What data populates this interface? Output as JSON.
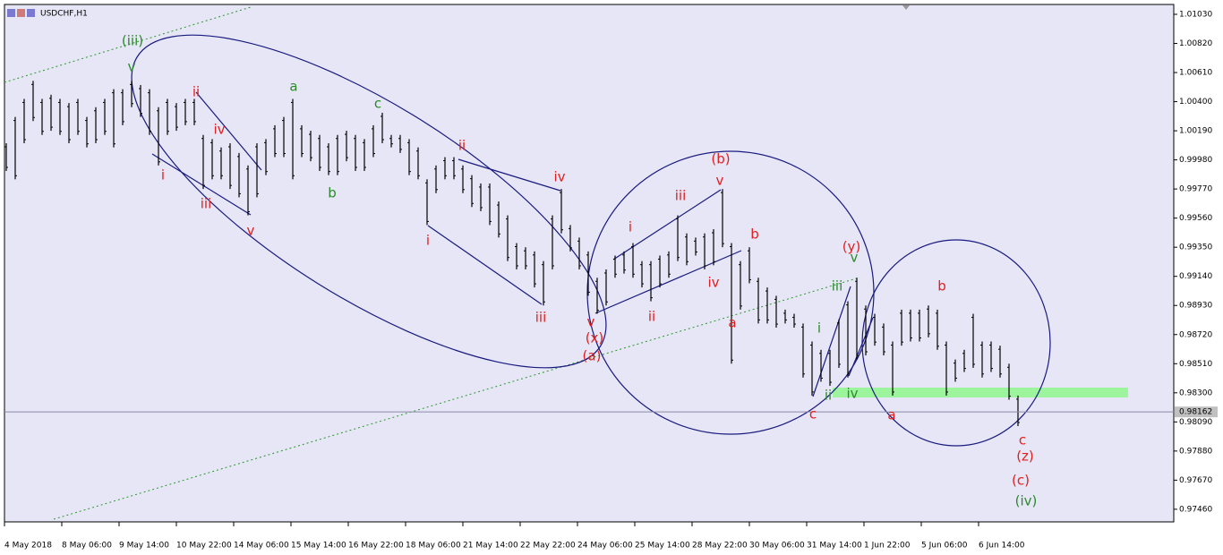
{
  "chart_data": {
    "type": "range",
    "title": "USDCHF,H1",
    "color": "#000000",
    "x": [
      1,
      6,
      11,
      16,
      21,
      26,
      31,
      36,
      41,
      46,
      51,
      56,
      61,
      66,
      71,
      76,
      81,
      86,
      91,
      96,
      101,
      106,
      111,
      116,
      121,
      126,
      131,
      136,
      141,
      146,
      151,
      156,
      161,
      166,
      171,
      176,
      181,
      186,
      191,
      196,
      201,
      206,
      211,
      216,
      221,
      226,
      231,
      236,
      241,
      246,
      251,
      256,
      261,
      266,
      271,
      276,
      281,
      286,
      291,
      296,
      301,
      306,
      311,
      316,
      321,
      326,
      331,
      336,
      341,
      346,
      351,
      356,
      361,
      366,
      371,
      376,
      381,
      386,
      391,
      396,
      401,
      406,
      411,
      416,
      421,
      426,
      431,
      436,
      441,
      446,
      451,
      456,
      461,
      466,
      471,
      476,
      481,
      486,
      491,
      496,
      501,
      506,
      511,
      516,
      521,
      526,
      531,
      536,
      541,
      546,
      551,
      556,
      561,
      566
    ],
    "high": [
      1.001,
      1.0029,
      1.0042,
      1.0055,
      1.0042,
      1.0045,
      1.0042,
      1.0039,
      1.0042,
      1.0029,
      1.0036,
      1.0042,
      1.0049,
      1.0049,
      1.0055,
      1.0052,
      1.0049,
      1.0036,
      1.0042,
      1.0039,
      1.0042,
      1.0042,
      1.0016,
      1.0013,
      1.0007,
      1.001,
      1.0003,
      0.9994,
      1.001,
      1.0013,
      1.0023,
      1.0029,
      1.0042,
      1.0023,
      1.0019,
      1.0016,
      1.001,
      1.0016,
      1.0019,
      1.0016,
      1.0013,
      1.0023,
      1.0032,
      1.0016,
      1.0016,
      1.0013,
      1.0007,
      0.9984,
      0.9994,
      1.0,
      1.0,
      0.9994,
      0.9987,
      0.9981,
      0.9981,
      0.9968,
      0.9958,
      0.9938,
      0.9935,
      0.9932,
      0.9925,
      0.9958,
      0.9977,
      0.9951,
      0.9942,
      0.9932,
      0.9913,
      0.9919,
      0.9929,
      0.9932,
      0.9938,
      0.9925,
      0.9925,
      0.9929,
      0.9932,
      0.9958,
      0.9945,
      0.9942,
      0.9945,
      0.9948,
      0.9977,
      0.9938,
      0.9925,
      0.9935,
      0.9913,
      0.9906,
      0.99,
      0.989,
      0.9887,
      0.988,
      0.9867,
      0.9861,
      0.9861,
      0.9883,
      0.9896,
      0.9913,
      0.9893,
      0.9887,
      0.988,
      0.9867,
      0.989,
      0.989,
      0.989,
      0.9893,
      0.989,
      0.9867,
      0.9854,
      0.9861,
      0.9887,
      0.9867,
      0.9867,
      0.9864,
      0.9851,
      0.9828
    ],
    "low": [
      0.999,
      0.9984,
      1.001,
      1.0026,
      1.0016,
      1.0019,
      1.0016,
      1.001,
      1.0016,
      1.0007,
      1.001,
      1.0016,
      1.0007,
      1.0023,
      1.0036,
      1.0029,
      1.0016,
      0.9994,
      1.0016,
      1.0019,
      1.0023,
      1.0023,
      0.9977,
      0.9984,
      0.9984,
      0.9977,
      0.9971,
      0.9958,
      0.9971,
      0.9987,
      1.0,
      1.0,
      0.9984,
      1.0,
      0.9997,
      0.999,
      0.9987,
      0.9987,
      0.9997,
      0.999,
      0.999,
      1.0,
      1.001,
      1.0007,
      1.0003,
      0.9987,
      0.9984,
      0.9951,
      0.9974,
      0.9984,
      0.9984,
      0.9974,
      0.9964,
      0.9961,
      0.9951,
      0.9942,
      0.9925,
      0.9919,
      0.9919,
      0.9906,
      0.9893,
      0.9919,
      0.9945,
      0.9932,
      0.9919,
      0.99,
      0.9887,
      0.9893,
      0.9913,
      0.9916,
      0.9913,
      0.9906,
      0.9896,
      0.9906,
      0.9913,
      0.9925,
      0.9922,
      0.9929,
      0.9919,
      0.9922,
      0.9935,
      0.9851,
      0.989,
      0.9909,
      0.988,
      0.988,
      0.9877,
      0.988,
      0.9877,
      0.9841,
      0.9828,
      0.9838,
      0.9835,
      0.9848,
      0.9841,
      0.9854,
      0.9857,
      0.9864,
      0.9857,
      0.9828,
      0.9864,
      0.9867,
      0.9867,
      0.987,
      0.9861,
      0.9828,
      0.9838,
      0.9845,
      0.9848,
      0.9841,
      0.9845,
      0.9841,
      0.9825,
      0.9806
    ],
    "xlim": [
      0,
      652
    ],
    "ylim": [
      0.97369,
      1.01101
    ],
    "yticks": [
      {
        "value": 1.0103,
        "label": "1.01030"
      },
      {
        "value": 1.0082,
        "label": "1.00820"
      },
      {
        "value": 1.0061,
        "label": "1.00610"
      },
      {
        "value": 1.004,
        "label": "1.00400"
      },
      {
        "value": 1.0019,
        "label": "1.00190"
      },
      {
        "value": 0.9998,
        "label": "0.99980"
      },
      {
        "value": 0.9977,
        "label": "0.99770"
      },
      {
        "value": 0.9956,
        "label": "0.99560"
      },
      {
        "value": 0.9935,
        "label": "0.99350"
      },
      {
        "value": 0.9914,
        "label": "0.99140"
      },
      {
        "value": 0.9893,
        "label": "0.98930"
      },
      {
        "value": 0.9872,
        "label": "0.98720"
      },
      {
        "value": 0.9851,
        "label": "0.98510"
      },
      {
        "value": 0.983,
        "label": "0.98300"
      },
      {
        "value": 0.9809,
        "label": "0.98090"
      },
      {
        "value": 0.9788,
        "label": "0.97880"
      },
      {
        "value": 0.9767,
        "label": "0.97670"
      },
      {
        "value": 0.9746,
        "label": "0.97460"
      }
    ],
    "xticks": [
      {
        "value": 0,
        "label": "4 May 2018"
      },
      {
        "value": 32,
        "label": "8 May 06:00"
      },
      {
        "value": 64,
        "label": "9 May 14:00"
      },
      {
        "value": 96,
        "label": "10 May 22:00"
      },
      {
        "value": 128,
        "label": "14 May 06:00"
      },
      {
        "value": 160,
        "label": "15 May 14:00"
      },
      {
        "value": 192,
        "label": "16 May 22:00"
      },
      {
        "value": 224,
        "label": "18 May 06:00"
      },
      {
        "value": 256,
        "label": "21 May 14:00"
      },
      {
        "value": 288,
        "label": "22 May 22:00"
      },
      {
        "value": 320,
        "label": "24 May 06:00"
      },
      {
        "value": 352,
        "label": "25 May 14:00"
      },
      {
        "value": 384,
        "label": "28 May 22:00"
      },
      {
        "value": 416,
        "label": "30 May 06:00"
      },
      {
        "value": 448,
        "label": "31 May 14:00"
      },
      {
        "value": 480,
        "label": "1 Jun 22:00"
      },
      {
        "value": 512,
        "label": "5 Jun 06:00"
      },
      {
        "value": 544,
        "label": "6 Jun 14:00"
      }
    ],
    "current_price": {
      "value": 0.98162,
      "label": "0.98162"
    },
    "annotations": [
      {
        "text": "(iii)",
        "color": "#2a8a2a"
      },
      {
        "text": "v",
        "color": "#2a8a2a"
      },
      {
        "text": "a",
        "color": "#2a8a2a"
      },
      {
        "text": "b",
        "color": "#2a8a2a"
      },
      {
        "text": "c",
        "color": "#2a8a2a"
      },
      {
        "text": "iii",
        "color": "#2a8a2a"
      },
      {
        "text": "v",
        "color": "#2a8a2a"
      },
      {
        "text": "i",
        "color": "#2a8a2a"
      },
      {
        "text": "ii",
        "color": "#2a8a2a"
      },
      {
        "text": "iv",
        "color": "#2a8a2a"
      },
      {
        "text": "(iv)",
        "color": "#2a8a2a"
      },
      {
        "text": "ii",
        "color": "#e02020"
      },
      {
        "text": "i",
        "color": "#e02020"
      },
      {
        "text": "iv",
        "color": "#e02020"
      },
      {
        "text": "iii",
        "color": "#e02020"
      },
      {
        "text": "v",
        "color": "#e02020"
      },
      {
        "text": "ii",
        "color": "#e02020"
      },
      {
        "text": "i",
        "color": "#e02020"
      },
      {
        "text": "iv",
        "color": "#e02020"
      },
      {
        "text": "iii",
        "color": "#e02020"
      },
      {
        "text": "v",
        "color": "#e02020"
      },
      {
        "text": "(x)",
        "color": "#e02020"
      },
      {
        "text": "(a)",
        "color": "#e02020"
      },
      {
        "text": "i",
        "color": "#e02020"
      },
      {
        "text": "iii",
        "color": "#e02020"
      },
      {
        "text": "(b)",
        "color": "#e02020"
      },
      {
        "text": "v",
        "color": "#e02020"
      },
      {
        "text": "iv",
        "color": "#e02020"
      },
      {
        "text": "ii",
        "color": "#e02020"
      },
      {
        "text": "b",
        "color": "#e02020"
      },
      {
        "text": "a",
        "color": "#e02020"
      },
      {
        "text": "c",
        "color": "#e02020"
      },
      {
        "text": "(y)",
        "color": "#e02020"
      },
      {
        "text": "b",
        "color": "#e02020"
      },
      {
        "text": "a",
        "color": "#e02020"
      },
      {
        "text": "c",
        "color": "#e02020"
      },
      {
        "text": "(z)",
        "color": "#e02020"
      },
      {
        "text": "(c)",
        "color": "#e02020"
      }
    ]
  }
}
